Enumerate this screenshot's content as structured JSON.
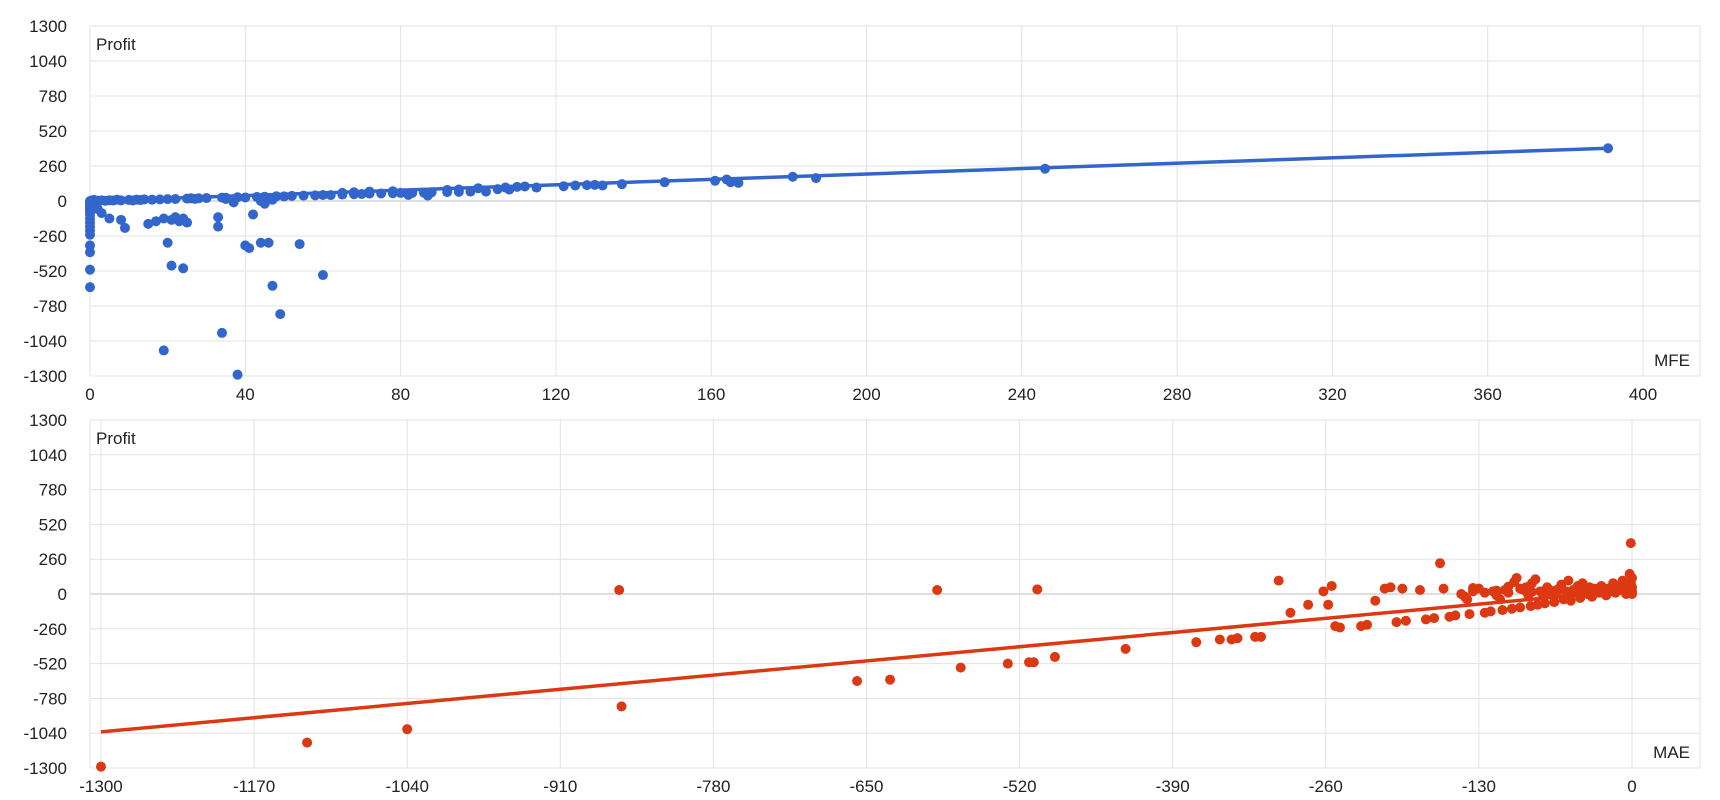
{
  "chart_data": [
    {
      "type": "scatter",
      "xlabel": "MFE",
      "ylabel": "Profit",
      "xlim": [
        0,
        400
      ],
      "ylim": [
        -1300,
        1300
      ],
      "xticks": [
        0,
        40,
        80,
        120,
        160,
        200,
        240,
        280,
        320,
        360,
        400
      ],
      "yticks": [
        1300,
        1040,
        780,
        520,
        260,
        0,
        -260,
        -520,
        -780,
        -1040,
        -1300
      ],
      "grid": true,
      "point_color": "#3366cc",
      "trendline": {
        "x": [
          0,
          391
        ],
        "y": [
          0,
          392
        ]
      },
      "points": [
        [
          0,
          0
        ],
        [
          0,
          -10
        ],
        [
          0,
          -20
        ],
        [
          0,
          -30
        ],
        [
          0,
          -45
        ],
        [
          0,
          -60
        ],
        [
          0,
          -80
        ],
        [
          0,
          -100
        ],
        [
          0,
          -130
        ],
        [
          0,
          -160
        ],
        [
          0,
          -190
        ],
        [
          0,
          -220
        ],
        [
          0,
          -250
        ],
        [
          0,
          -330
        ],
        [
          0,
          -380
        ],
        [
          0,
          -510
        ],
        [
          0,
          -640
        ],
        [
          0.5,
          5
        ],
        [
          1,
          -15
        ],
        [
          1,
          8
        ],
        [
          2,
          3
        ],
        [
          2,
          -60
        ],
        [
          3,
          5
        ],
        [
          3,
          -90
        ],
        [
          4,
          2
        ],
        [
          5,
          6
        ],
        [
          5,
          -130
        ],
        [
          6,
          4
        ],
        [
          7,
          10
        ],
        [
          8,
          5
        ],
        [
          8,
          -140
        ],
        [
          9,
          -200
        ],
        [
          10,
          8
        ],
        [
          11,
          4
        ],
        [
          12,
          10
        ],
        [
          13,
          7
        ],
        [
          14,
          12
        ],
        [
          15,
          -170
        ],
        [
          16,
          10
        ],
        [
          17,
          -150
        ],
        [
          18,
          12
        ],
        [
          19,
          -130
        ],
        [
          20,
          14
        ],
        [
          20,
          -310
        ],
        [
          21,
          -140
        ],
        [
          21,
          -480
        ],
        [
          22,
          15
        ],
        [
          22,
          -120
        ],
        [
          23,
          -150
        ],
        [
          24,
          -500
        ],
        [
          24,
          -130
        ],
        [
          25,
          18
        ],
        [
          25,
          -160
        ],
        [
          26,
          20
        ],
        [
          27,
          16
        ],
        [
          28,
          20
        ],
        [
          30,
          22
        ],
        [
          33,
          -120
        ],
        [
          34,
          25
        ],
        [
          35,
          24
        ],
        [
          37,
          -10
        ],
        [
          38,
          28
        ],
        [
          40,
          26
        ],
        [
          42,
          -100
        ],
        [
          43,
          30
        ],
        [
          45,
          32
        ],
        [
          48,
          35
        ],
        [
          50,
          34
        ],
        [
          52,
          38
        ],
        [
          55,
          40
        ],
        [
          58,
          42
        ],
        [
          60,
          45
        ],
        [
          62,
          44
        ],
        [
          65,
          48
        ],
        [
          68,
          50
        ],
        [
          70,
          52
        ],
        [
          72,
          55
        ],
        [
          75,
          56
        ],
        [
          78,
          58
        ],
        [
          80,
          60
        ],
        [
          83,
          60
        ],
        [
          86,
          62
        ],
        [
          88,
          65
        ],
        [
          92,
          66
        ],
        [
          95,
          68
        ],
        [
          98,
          70
        ],
        [
          33,
          -190
        ],
        [
          34,
          -980
        ],
        [
          38,
          -1290
        ],
        [
          40,
          -330
        ],
        [
          41,
          -350
        ],
        [
          44,
          -310
        ],
        [
          46,
          -310
        ],
        [
          47,
          -630
        ],
        [
          49,
          -840
        ],
        [
          54,
          -320
        ],
        [
          60,
          -550
        ],
        [
          19,
          -1110
        ],
        [
          44,
          0
        ],
        [
          45,
          -20
        ],
        [
          47,
          10
        ],
        [
          35,
          15
        ],
        [
          65,
          60
        ],
        [
          68,
          65
        ],
        [
          72,
          70
        ],
        [
          78,
          72
        ],
        [
          82,
          45
        ],
        [
          87,
          40
        ],
        [
          92,
          82
        ],
        [
          95,
          85
        ],
        [
          100,
          95
        ],
        [
          102,
          70
        ],
        [
          105,
          88
        ],
        [
          107,
          100
        ],
        [
          108,
          85
        ],
        [
          110,
          105
        ],
        [
          112,
          108
        ],
        [
          115,
          100
        ],
        [
          122,
          110
        ],
        [
          125,
          115
        ],
        [
          128,
          118
        ],
        [
          130,
          120
        ],
        [
          132,
          115
        ],
        [
          137,
          125
        ],
        [
          148,
          140
        ],
        [
          161,
          150
        ],
        [
          164,
          160
        ],
        [
          165,
          140
        ],
        [
          167,
          135
        ],
        [
          181,
          180
        ],
        [
          187,
          170
        ],
        [
          246,
          240
        ],
        [
          391,
          392
        ]
      ]
    },
    {
      "type": "scatter",
      "xlabel": "MAE",
      "ylabel": "Profit",
      "xlim": [
        -1300,
        0
      ],
      "ylim": [
        -1300,
        1300
      ],
      "xticks": [
        -1300,
        -1170,
        -1040,
        -910,
        -780,
        -650,
        -520,
        -390,
        -260,
        -130,
        0
      ],
      "yticks": [
        1300,
        1040,
        780,
        520,
        260,
        0,
        -260,
        -520,
        -780,
        -1040,
        -1300
      ],
      "grid": true,
      "point_color": "#dc3912",
      "trendline": {
        "x": [
          -1300,
          0
        ],
        "y": [
          -1030,
          30
        ]
      },
      "points": [
        [
          -1300,
          -1290
        ],
        [
          -1125,
          -1110
        ],
        [
          -1040,
          -1010
        ],
        [
          -860,
          30
        ],
        [
          -858,
          -840
        ],
        [
          -658,
          -650
        ],
        [
          -630,
          -640
        ],
        [
          -590,
          30
        ],
        [
          -570,
          -550
        ],
        [
          -530,
          -520
        ],
        [
          -512,
          -510
        ],
        [
          -508,
          -510
        ],
        [
          -505,
          35
        ],
        [
          -490,
          -470
        ],
        [
          -430,
          -410
        ],
        [
          -370,
          -360
        ],
        [
          -350,
          -340
        ],
        [
          -340,
          -340
        ],
        [
          -335,
          -330
        ],
        [
          -320,
          -320
        ],
        [
          -315,
          -320
        ],
        [
          -300,
          100
        ],
        [
          -290,
          -140
        ],
        [
          -275,
          -80
        ],
        [
          -262,
          20
        ],
        [
          -258,
          -80
        ],
        [
          -255,
          60
        ],
        [
          -252,
          -240
        ],
        [
          -248,
          -250
        ],
        [
          -230,
          -240
        ],
        [
          -225,
          -230
        ],
        [
          -218,
          -50
        ],
        [
          -210,
          40
        ],
        [
          -205,
          50
        ],
        [
          -200,
          -210
        ],
        [
          -195,
          40
        ],
        [
          -192,
          -200
        ],
        [
          -180,
          30
        ],
        [
          -175,
          -190
        ],
        [
          -168,
          -180
        ],
        [
          -163,
          230
        ],
        [
          -160,
          40
        ],
        [
          -155,
          -170
        ],
        [
          -150,
          -160
        ],
        [
          -145,
          0
        ],
        [
          -142,
          -20
        ],
        [
          -140,
          -40
        ],
        [
          -138,
          -150
        ],
        [
          -135,
          20
        ],
        [
          -130,
          40
        ],
        [
          -125,
          -140
        ],
        [
          -120,
          -130
        ],
        [
          -118,
          20
        ],
        [
          -115,
          -10
        ],
        [
          -112,
          -40
        ],
        [
          -110,
          -120
        ],
        [
          -108,
          30
        ],
        [
          -105,
          10
        ],
        [
          -102,
          -110
        ],
        [
          -100,
          90
        ],
        [
          -98,
          120
        ],
        [
          -95,
          -100
        ],
        [
          -92,
          30
        ],
        [
          -90,
          50
        ],
        [
          -88,
          -10
        ],
        [
          -86,
          -90
        ],
        [
          -85,
          80
        ],
        [
          -82,
          110
        ],
        [
          -80,
          -80
        ],
        [
          -78,
          20
        ],
        [
          -76,
          0
        ],
        [
          -74,
          -70
        ],
        [
          -72,
          50
        ],
        [
          -70,
          30
        ],
        [
          -68,
          10
        ],
        [
          -66,
          -60
        ],
        [
          -64,
          0
        ],
        [
          -62,
          40
        ],
        [
          -60,
          70
        ],
        [
          -58,
          -40
        ],
        [
          -56,
          20
        ],
        [
          -54,
          100
        ],
        [
          -52,
          -50
        ],
        [
          -50,
          30
        ],
        [
          -48,
          10
        ],
        [
          -46,
          60
        ],
        [
          -44,
          -30
        ],
        [
          -42,
          80
        ],
        [
          -40,
          20
        ],
        [
          -38,
          0
        ],
        [
          -36,
          50
        ],
        [
          -34,
          -20
        ],
        [
          -32,
          40
        ],
        [
          -30,
          20
        ],
        [
          -28,
          10
        ],
        [
          -26,
          60
        ],
        [
          -24,
          30
        ],
        [
          -22,
          -10
        ],
        [
          -20,
          40
        ],
        [
          -18,
          20
        ],
        [
          -16,
          80
        ],
        [
          -14,
          10
        ],
        [
          -12,
          50
        ],
        [
          -10,
          30
        ],
        [
          -8,
          100
        ],
        [
          -6,
          20
        ],
        [
          -5,
          0
        ],
        [
          -4,
          60
        ],
        [
          -3,
          40
        ],
        [
          -2,
          150
        ],
        [
          -2,
          10
        ],
        [
          -1,
          80
        ],
        [
          -1,
          380
        ],
        [
          0,
          20
        ],
        [
          0,
          50
        ],
        [
          0,
          120
        ],
        [
          0,
          0
        ],
        [
          -65,
          25
        ],
        [
          -75,
          5
        ],
        [
          -85,
          15
        ],
        [
          -95,
          40
        ],
        [
          -105,
          55
        ],
        [
          -115,
          25
        ],
        [
          -125,
          10
        ],
        [
          -135,
          45
        ]
      ]
    }
  ]
}
